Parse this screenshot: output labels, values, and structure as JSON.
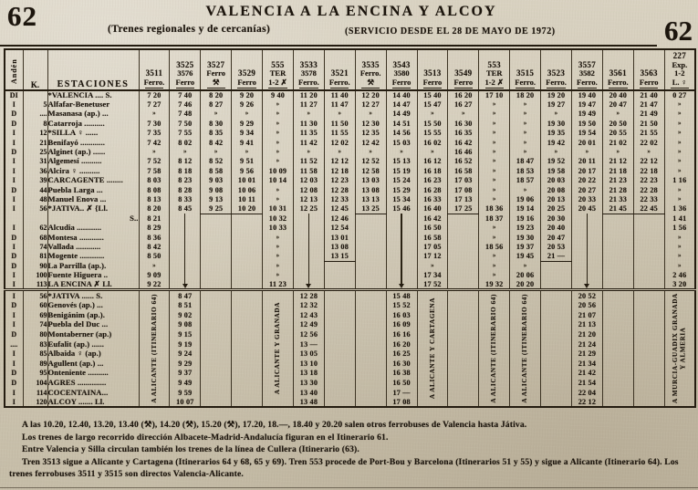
{
  "page": {
    "number_left": "62",
    "number_right": "62",
    "title": "VALENCIA A LA ENCINA Y ALCOY",
    "subtitle": "(Trenes regionales y de cercanías)",
    "service_note": "(SERVICIO DESDE EL 28 DE MAYO DE 1972)"
  },
  "table": {
    "corner_headers": {
      "anden": "Andén",
      "km": "K.",
      "estaciones": "ESTACIONES"
    },
    "columns": [
      {
        "id": "3511",
        "lines": [
          "3511",
          "Ferro."
        ]
      },
      {
        "id": "3525-3576",
        "lines": [
          "3525",
          "3576",
          "Ferro"
        ]
      },
      {
        "id": "3527",
        "lines": [
          "3527",
          "Ferro",
          "⚒"
        ]
      },
      {
        "id": "3529",
        "lines": [
          "3529",
          "Ferro"
        ]
      },
      {
        "id": "555",
        "lines": [
          "555",
          "TER",
          "1-2 ✗"
        ]
      },
      {
        "id": "3533-3578",
        "lines": [
          "3533",
          "3578",
          "Ferro."
        ]
      },
      {
        "id": "3521",
        "lines": [
          "3521",
          "Ferro."
        ]
      },
      {
        "id": "3535",
        "lines": [
          "3535",
          "Ferro.",
          "⚒"
        ]
      },
      {
        "id": "3543-3580",
        "lines": [
          "3543",
          "3580",
          "Ferro"
        ]
      },
      {
        "id": "3513",
        "lines": [
          "3513",
          "Ferro"
        ]
      },
      {
        "id": "3549",
        "lines": [
          "3549",
          "Ferro"
        ]
      },
      {
        "id": "553",
        "lines": [
          "553",
          "TER",
          "1-2 ✗"
        ]
      },
      {
        "id": "3515",
        "lines": [
          "3515",
          "Ferro."
        ]
      },
      {
        "id": "3523",
        "lines": [
          "3523",
          "Ferro."
        ]
      },
      {
        "id": "3557-3582",
        "lines": [
          "3557",
          "3582",
          "Ferro."
        ]
      },
      {
        "id": "3561",
        "lines": [
          "3561",
          "Ferro."
        ]
      },
      {
        "id": "3563",
        "lines": [
          "3563",
          "Ferro"
        ]
      },
      {
        "id": "227",
        "lines": [
          "227",
          "Exp.",
          "1-2",
          "L. ♀"
        ]
      }
    ],
    "top_section": {
      "rows": [
        {
          "anden": "DI",
          "km": "",
          "station": "*VALENCIA .... S.",
          "times": [
            "7 20",
            "7 40",
            "8 20",
            "9 20",
            "9 40",
            "11 20",
            "11 40",
            "12 20",
            "14 40",
            "15 40",
            "16 20",
            "17 10",
            "18 20",
            "19 20",
            "19 40",
            "20 40",
            "21 40",
            "0 27"
          ]
        },
        {
          "anden": "I",
          "km": "5",
          "station": "Alfafar-Benetuser",
          "times": [
            "7 27",
            "7 46",
            "8 27",
            "9 26",
            "»",
            "11 27",
            "11 47",
            "12 27",
            "14 47",
            "15 47",
            "16 27",
            "»",
            "»",
            "19 27",
            "19 47",
            "20 47",
            "21 47",
            "»"
          ]
        },
        {
          "anden": "D",
          "km": "....",
          "station": "Masanasa (ap.) ...",
          "times": [
            "»",
            "7 48",
            "»",
            "»",
            "»",
            "»",
            "»",
            "»",
            "14 49",
            "»",
            "»",
            "»",
            "»",
            "»",
            "19 49",
            "»",
            "21 49",
            "»"
          ]
        },
        {
          "anden": "D",
          "km": "8",
          "station": "Catarroja ..........",
          "times": [
            "7 30",
            "7 50",
            "8 30",
            "9 29",
            "»",
            "11 30",
            "11 50",
            "12 30",
            "14 51",
            "15 50",
            "16 30",
            "»",
            "»",
            "19 30",
            "19 50",
            "20 50",
            "21 50",
            "»"
          ]
        },
        {
          "anden": "I",
          "km": "12",
          "station": "*SILLA ♀ ......",
          "times": [
            "7 35",
            "7 55",
            "8 35",
            "9 34",
            "»",
            "11 35",
            "11 55",
            "12 35",
            "14 56",
            "15 55",
            "16 35",
            "»",
            "»",
            "19 35",
            "19 54",
            "20 55",
            "21 55",
            "»"
          ]
        },
        {
          "anden": "I",
          "km": "21",
          "station": "Benifayó ............",
          "times": [
            "7 42",
            "8 02",
            "8 42",
            "9 41",
            "»",
            "11 42",
            "12 02",
            "12 42",
            "15 03",
            "16 02",
            "16 42",
            "»",
            "»",
            "19 42",
            "20 01",
            "21 02",
            "22 02",
            "»"
          ]
        },
        {
          "anden": "D",
          "km": "25",
          "station": "Alginet (ap.) ......",
          "times": [
            "»",
            "»",
            "»",
            "»",
            "»",
            "»",
            "»",
            "»",
            "»",
            "»",
            "16 46",
            "»",
            "»",
            "»",
            "»",
            "»",
            "»",
            "»"
          ]
        },
        {
          "anden": "I",
          "km": "31",
          "station": "Algemesí ..........",
          "times": [
            "7 52",
            "8 12",
            "8 52",
            "9 51",
            "»",
            "11 52",
            "12 12",
            "12 52",
            "15 13",
            "16 12",
            "16 52",
            "»",
            "18 47",
            "19 52",
            "20 11",
            "21 12",
            "22 12",
            "»"
          ]
        },
        {
          "anden": "I",
          "km": "36",
          "station": "Alcira ♀ ..........",
          "times": [
            "7 58",
            "8 18",
            "8 58",
            "9 56",
            "10 09",
            "11 58",
            "12 18",
            "12 58",
            "15 19",
            "16 18",
            "16 58",
            "»",
            "18 53",
            "19 58",
            "20 17",
            "21 18",
            "22 18",
            "»"
          ]
        },
        {
          "anden": "I",
          "km": "39",
          "station": "CARCAGENTE ........",
          "times": [
            "8 03",
            "8 23",
            "9 03",
            "10 01",
            "10 14",
            "12 03",
            "12 23",
            "13 03",
            "15 24",
            "16 23",
            "17 03",
            "»",
            "18 57",
            "20 03",
            "20 22",
            "21 23",
            "22 23",
            "1 16"
          ]
        },
        {
          "anden": "D",
          "km": "44",
          "station": "Puebla Larga ...",
          "times": [
            "8 08",
            "8 28",
            "9 08",
            "10 06",
            "»",
            "12 08",
            "12 28",
            "13 08",
            "15 29",
            "16 28",
            "17 08",
            "»",
            "»",
            "20 08",
            "20 27",
            "21 28",
            "22 28",
            "»"
          ]
        },
        {
          "anden": "I",
          "km": "48",
          "station": "Manuel Enova ...",
          "times": [
            "8 13",
            "8 33",
            "9 13",
            "10 11",
            "»",
            "12 13",
            "12 33",
            "13 13",
            "15 34",
            "16 33",
            "17 13",
            "»",
            "19 06",
            "20 13",
            "20 33",
            "21 33",
            "22 33",
            "»"
          ]
        },
        {
          "anden": "I",
          "km": "56",
          "station": "*JATIVA.. ✗ {Ll.",
          "times": [
            "8 20",
            "8 45",
            "9 25",
            "10 20",
            "10 31",
            "12 25",
            "12 45",
            "13 25",
            "15 46",
            "16 40",
            "17 25",
            "18 36",
            "19 14",
            "20 25",
            "20 45",
            "21 45",
            "22 45",
            "1 36"
          ]
        },
        {
          "anden": "",
          "km": "",
          "station": "S..",
          "station_align": "right",
          "times": [
            "8 21",
            "│",
            "",
            "",
            "10 32",
            "│",
            "12 46",
            "",
            "│",
            "16 42",
            "",
            "18 37",
            "19 16",
            "20 30",
            "│",
            "",
            "",
            "1 41"
          ]
        },
        {
          "anden": "I",
          "km": "62",
          "station": "Alcudia ............",
          "times": [
            "8 29",
            "│",
            "",
            "",
            "10 33",
            "│",
            "12 54",
            "",
            "│",
            "16 50",
            "",
            "»",
            "19 23",
            "20 40",
            "│",
            "",
            "",
            "1 56"
          ]
        },
        {
          "anden": "D",
          "km": "68",
          "station": "Montesa ............",
          "times": [
            "8 36",
            "│",
            "",
            "",
            "»",
            "│",
            "13 01",
            "",
            "│",
            "16 58",
            "",
            "»",
            "19 30",
            "20 47",
            "│",
            "",
            "",
            "»"
          ]
        },
        {
          "anden": "I",
          "km": "74",
          "station": "Vallada ............",
          "times": [
            "8 42",
            "│",
            "",
            "",
            "»",
            "│",
            "13 08",
            "",
            "│",
            "17 05",
            "",
            "18 56",
            "19 37",
            "20 53",
            "│",
            "",
            "",
            "»"
          ]
        },
        {
          "anden": "D",
          "km": "81",
          "station": "Mogente ............",
          "times": [
            "8 50",
            "│",
            "",
            "",
            "»",
            "│",
            "13 15",
            "",
            "│",
            "17 12",
            "",
            "»",
            "19 45",
            "21 —",
            "│",
            "",
            "",
            "»"
          ]
        },
        {
          "anden": "D",
          "km": "90",
          "station": "La Parrilla (ap.).",
          "times": [
            "»",
            "│",
            "",
            "",
            "»",
            "│",
            "",
            "",
            "│",
            "»",
            "",
            "»",
            "»",
            "",
            "│",
            "",
            "",
            "»"
          ]
        },
        {
          "anden": "I",
          "km": "100",
          "station": "Fuente Higuera ..",
          "times": [
            "9 09",
            "│",
            "",
            "",
            "»",
            "│",
            "",
            "",
            "│",
            "17 34",
            "",
            "»",
            "20 06",
            "",
            "│",
            "",
            "",
            "2 46"
          ]
        },
        {
          "anden": "I",
          "km": "113",
          "station": "LA ENCINA ✗ Ll.",
          "times": [
            "9 22",
            "▼",
            "",
            "",
            "11 23",
            "▼",
            "",
            "",
            "▼",
            "17 52",
            "",
            "19 32",
            "20 20",
            "",
            "▼",
            "",
            "",
            "3 20"
          ]
        }
      ],
      "terminator_cells": [
        [
          12,
          2
        ],
        [
          12,
          3
        ],
        [
          12,
          7
        ],
        [
          12,
          10
        ],
        [
          12,
          15
        ],
        [
          12,
          16
        ],
        [
          17,
          6
        ],
        [
          17,
          13
        ]
      ]
    },
    "bottom_section": {
      "rows": [
        {
          "anden": "I",
          "km": "56",
          "station": "*JATIVA ...... S.",
          "times": [
            "",
            "8 47",
            "",
            "",
            "",
            "12 28",
            "",
            "",
            "15 48",
            "",
            "",
            "",
            "",
            "",
            "20 52",
            "",
            "",
            ""
          ]
        },
        {
          "anden": "D",
          "km": "60",
          "station": "Genovés (ap.) ...",
          "times": [
            "",
            "8 51",
            "",
            "",
            "",
            "12 32",
            "",
            "",
            "15 52",
            "",
            "",
            "",
            "",
            "",
            "20 56",
            "",
            "",
            ""
          ]
        },
        {
          "anden": "I",
          "km": "69",
          "station": "Benigánim (ap.).",
          "times": [
            "",
            "9 02",
            "",
            "",
            "",
            "12 43",
            "",
            "",
            "16 03",
            "",
            "",
            "",
            "",
            "",
            "21 07",
            "",
            "",
            ""
          ]
        },
        {
          "anden": "I",
          "km": "74",
          "station": "Puebla del Duc ...",
          "times": [
            "",
            "9 08",
            "",
            "",
            "",
            "12 49",
            "",
            "",
            "16 09",
            "",
            "",
            "",
            "",
            "",
            "21 13",
            "",
            "",
            ""
          ]
        },
        {
          "anden": "D",
          "km": "80",
          "station": "Montaberner (ap.)",
          "times": [
            "",
            "9 15",
            "",
            "",
            "",
            "12 56",
            "",
            "",
            "16 16",
            "",
            "",
            "",
            "",
            "",
            "21 20",
            "",
            "",
            ""
          ]
        },
        {
          "anden": "....",
          "km": "83",
          "station": "Eufalit (ap.) ......",
          "times": [
            "",
            "9 19",
            "",
            "",
            "",
            "13 —",
            "",
            "",
            "16 20",
            "",
            "",
            "",
            "",
            "",
            "21 24",
            "",
            "",
            ""
          ]
        },
        {
          "anden": "I",
          "km": "85",
          "station": "Albaida ♀ (ap.)",
          "times": [
            "",
            "9 24",
            "",
            "",
            "",
            "13 05",
            "",
            "",
            "16 25",
            "",
            "",
            "",
            "",
            "",
            "21 29",
            "",
            "",
            ""
          ]
        },
        {
          "anden": "I",
          "km": "89",
          "station": "Agullent (ap.) ...",
          "times": [
            "",
            "9 29",
            "",
            "",
            "",
            "13 10",
            "",
            "",
            "16 30",
            "",
            "",
            "",
            "",
            "",
            "21 34",
            "",
            "",
            ""
          ]
        },
        {
          "anden": "D",
          "km": "95",
          "station": "Onteniente ..........",
          "times": [
            "",
            "9 37",
            "",
            "",
            "",
            "13 18",
            "",
            "",
            "16 38",
            "",
            "",
            "",
            "",
            "",
            "21 42",
            "",
            "",
            ""
          ]
        },
        {
          "anden": "D",
          "km": "104",
          "station": "AGRES ..............",
          "times": [
            "",
            "9 49",
            "",
            "",
            "",
            "13 30",
            "",
            "",
            "16 50",
            "",
            "",
            "",
            "",
            "",
            "21 54",
            "",
            "",
            ""
          ]
        },
        {
          "anden": "I",
          "km": "114",
          "station": "COCENTAINA...",
          "times": [
            "",
            "9 59",
            "",
            "",
            "",
            "13 40",
            "",
            "",
            "17 —",
            "",
            "",
            "",
            "",
            "",
            "22 04",
            "",
            "",
            ""
          ]
        },
        {
          "anden": "I",
          "km": "120",
          "station": "ALCOY ....... Ll.",
          "times": [
            "",
            "10 07",
            "",
            "",
            "",
            "13 48",
            "",
            "",
            "17 08",
            "",
            "",
            "",
            "",
            "",
            "22 12",
            "",
            "",
            ""
          ]
        }
      ],
      "rotated_destinations": [
        {
          "col": 0,
          "text": "A ALICANTE (ITINERARIO 64)"
        },
        {
          "col": 4,
          "text": "A ALICANTE Y GRANADA"
        },
        {
          "col": 9,
          "text": "A ALICANTE Y CARTAGENA"
        },
        {
          "col": 11,
          "text": "A ALICANTE (ITINERARIO 64)"
        },
        {
          "col": 12,
          "text": "A ALICANTE (ITINERARIO 64)"
        },
        {
          "col": 17,
          "text": "A MURCIA-GUADIX GRANADA Y ALMERIA"
        }
      ]
    }
  },
  "footnotes": [
    "A las 10.20, 12.40, 13.20, 13.40 (⚒), 14.20 (⚒), 15.20 (⚒), 17.20, 18.—, 18.40 y 20.20 salen otros ferrobuses de Valencia hasta Játiva.",
    "Los trenes de largo recorrido dirección Albacete-Madrid-Andalucía figuran en el Itinerario 61.",
    "Entre Valencia y Silla circulan también los trenes de la línea de Cullera (Itinerario (63).",
    "Tren 3513 sigue a Alicante y Cartagena (Itinerarios 64 y 68, 65 y 69). Tren 553 procede de Port-Bou y Barcelona (Itinerarios 51 y 55) y sigue a Alicante (Itinerario 64). Los trenes ferrobuses 3511 y 3515 son directos Valencia-Alicante."
  ],
  "symbols_legend": {
    "skip_mark": "»",
    "workdays": "⚒",
    "restaurant": "✗",
    "arrow_continues": "▼"
  },
  "colors": {
    "paper": "#d2cab7",
    "ink": "#1c150d"
  }
}
